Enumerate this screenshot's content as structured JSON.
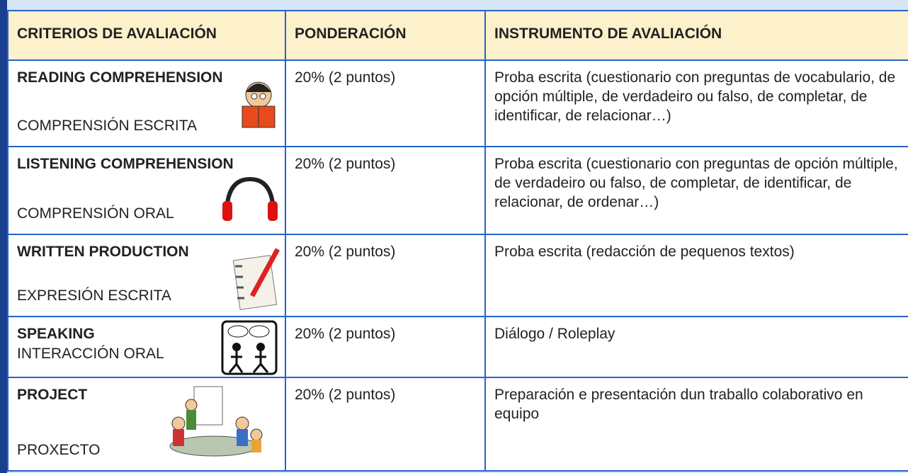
{
  "table": {
    "header": [
      "CRITERIOS DE AVALIACIÓN",
      "PONDERACIÓN",
      "INSTRUMENTO DE AVALIACIÓN"
    ],
    "rows": [
      {
        "title": "READING COMPREHENSION",
        "subtitle": "COMPRENSIÓN ESCRITA",
        "weight": "20% (2 puntos)",
        "instrument": "Proba escrita (cuestionario con preguntas  de vocabulario, de opción múltiple, de verdadeiro ou falso, de completar, de identificar, de relacionar…)"
      },
      {
        "title": "LISTENING COMPREHENSION",
        "subtitle": "COMPRENSIÓN ORAL",
        "weight": "20% (2 puntos)",
        "instrument": "Proba escrita  (cuestionario con preguntas de opción múltiple, de verdadeiro ou falso, de completar, de identificar, de relacionar, de ordenar…)"
      },
      {
        "title": "WRITTEN PRODUCTION",
        "subtitle": "EXPRESIÓN ESCRITA",
        "weight": "20% (2 puntos)",
        "instrument": "Proba escrita (redacción de pequenos textos)"
      },
      {
        "title": "SPEAKING",
        "subtitle": "INTERACCIÓN ORAL",
        "weight": "20% (2 puntos)",
        "instrument": "Diálogo / Roleplay"
      },
      {
        "title": "PROJECT",
        "subtitle": "PROXECTO",
        "weight": "20% (2 puntos)",
        "instrument": "Preparación e presentación dun traballo colaborativo en equipo"
      }
    ]
  }
}
